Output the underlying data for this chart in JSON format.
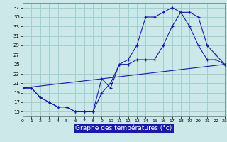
{
  "background_color": "#cce8e8",
  "plot_bg_color": "#cce8e8",
  "line_color": "#1a1aaa",
  "grid_color": "#99cccc",
  "xlabel": "Graphe des températures (°c)",
  "xlim": [
    0,
    23
  ],
  "ylim": [
    14,
    38
  ],
  "yticks": [
    15,
    17,
    19,
    21,
    23,
    25,
    27,
    29,
    31,
    33,
    35,
    37
  ],
  "xticks": [
    0,
    1,
    2,
    3,
    4,
    5,
    6,
    7,
    8,
    9,
    10,
    11,
    12,
    13,
    14,
    15,
    16,
    17,
    18,
    19,
    20,
    21,
    22,
    23
  ],
  "curve1_x": [
    0,
    1,
    2,
    3,
    4,
    5,
    6,
    7,
    8,
    9,
    10,
    11,
    12,
    13,
    14,
    15,
    16,
    17,
    18,
    19,
    20,
    21,
    22,
    23
  ],
  "curve1_y": [
    20,
    20,
    18,
    17,
    16,
    16,
    15,
    15,
    15,
    19,
    21,
    25,
    26,
    29,
    35,
    35,
    36,
    37,
    36,
    36,
    35,
    29,
    27,
    25
  ],
  "curve2_x": [
    0,
    1,
    2,
    3,
    4,
    5,
    6,
    7,
    8,
    9,
    10,
    11,
    12,
    13,
    14,
    15,
    16,
    17,
    18,
    19,
    20,
    21,
    22,
    23
  ],
  "curve2_y": [
    20,
    20,
    18,
    17,
    16,
    16,
    15,
    15,
    15,
    22,
    20,
    25,
    25,
    26,
    26,
    26,
    29,
    33,
    36,
    33,
    29,
    26,
    26,
    25
  ],
  "line3_x": [
    0,
    23
  ],
  "line3_y": [
    20,
    25
  ]
}
